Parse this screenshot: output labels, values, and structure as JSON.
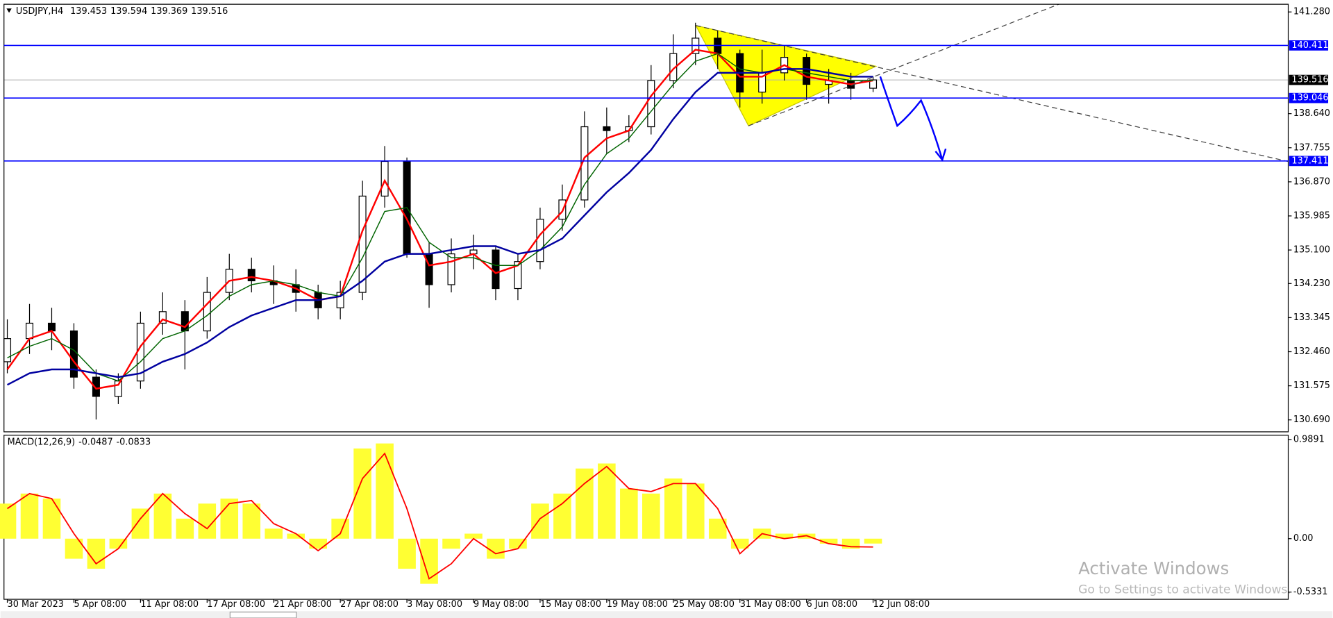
{
  "chart_data": [
    {
      "type": "candlestick",
      "title": "USDJPY,H4",
      "ohlc": [
        139.453,
        139.594,
        139.369,
        139.516
      ],
      "categories": [
        "30 Mar 2023",
        null,
        null,
        "5 Apr 08:00",
        null,
        null,
        "11 Apr 08:00",
        null,
        null,
        "17 Apr 08:00",
        null,
        null,
        "21 Apr 08:00",
        null,
        null,
        "27 Apr 08:00",
        null,
        null,
        "3 May 08:00",
        null,
        null,
        "9 May 08:00",
        null,
        null,
        "15 May 08:00",
        null,
        null,
        "19 May 08:00",
        null,
        null,
        "25 May 08:00",
        null,
        null,
        "31 May 08:00",
        null,
        null,
        "6 Jun 08:00",
        null,
        null,
        "12 Jun 08:00"
      ],
      "open": [
        132.2,
        132.8,
        133.2,
        133.0,
        131.8,
        131.3,
        131.7,
        133.2,
        133.5,
        133.0,
        134.0,
        134.6,
        134.3,
        134.2,
        134.0,
        133.6,
        134.0,
        136.5,
        137.4,
        135.0,
        134.2,
        135.0,
        135.1,
        134.1,
        134.8,
        135.9,
        136.4,
        138.3,
        138.2,
        138.3,
        139.5,
        140.2,
        140.6,
        140.2,
        139.2,
        139.7,
        140.1,
        139.4,
        139.5,
        139.3
      ],
      "high": [
        133.3,
        133.7,
        133.6,
        133.2,
        132.0,
        131.9,
        133.5,
        134.0,
        133.8,
        134.4,
        135.0,
        134.9,
        134.7,
        134.6,
        134.2,
        134.3,
        136.9,
        137.8,
        137.5,
        135.3,
        135.4,
        135.5,
        135.2,
        135.0,
        136.2,
        136.8,
        138.7,
        138.8,
        138.6,
        139.9,
        140.7,
        141.0,
        140.8,
        140.3,
        140.3,
        140.4,
        140.2,
        139.8,
        139.7,
        139.6
      ],
      "low": [
        131.9,
        132.4,
        132.5,
        131.5,
        130.7,
        131.1,
        131.5,
        132.9,
        132.0,
        132.8,
        133.8,
        134.0,
        133.7,
        133.5,
        133.3,
        133.3,
        133.8,
        136.2,
        134.9,
        133.6,
        134.0,
        134.6,
        133.8,
        133.8,
        134.6,
        135.6,
        136.2,
        137.6,
        137.9,
        138.1,
        139.3,
        139.9,
        139.8,
        138.8,
        138.9,
        139.5,
        139.0,
        138.9,
        139.0,
        139.2
      ],
      "close": [
        132.8,
        133.2,
        133.0,
        131.8,
        131.3,
        131.7,
        133.2,
        133.5,
        133.0,
        134.0,
        134.6,
        134.3,
        134.2,
        134.0,
        133.6,
        134.0,
        136.5,
        137.4,
        135.0,
        134.2,
        135.0,
        135.1,
        134.1,
        134.8,
        135.9,
        136.4,
        138.3,
        138.2,
        138.3,
        139.5,
        140.2,
        140.6,
        140.2,
        139.2,
        139.7,
        140.1,
        139.4,
        139.5,
        139.3,
        139.516
      ],
      "moving_averages": [
        {
          "color": "#ff0000",
          "values": [
            132.0,
            132.8,
            133.0,
            132.2,
            131.5,
            131.6,
            132.6,
            133.3,
            133.1,
            133.7,
            134.3,
            134.4,
            134.3,
            134.1,
            133.8,
            133.9,
            135.6,
            136.9,
            135.9,
            134.7,
            134.8,
            135.0,
            134.5,
            134.7,
            135.5,
            136.1,
            137.5,
            138.0,
            138.2,
            139.1,
            139.8,
            140.3,
            140.2,
            139.6,
            139.6,
            139.9,
            139.6,
            139.5,
            139.4,
            139.5
          ]
        },
        {
          "color": "#006400",
          "values": [
            132.3,
            132.6,
            132.8,
            132.5,
            131.9,
            131.7,
            132.2,
            132.8,
            133.0,
            133.4,
            133.9,
            134.2,
            134.3,
            134.2,
            134.0,
            133.9,
            134.9,
            136.1,
            136.2,
            135.3,
            134.9,
            134.9,
            134.7,
            134.7,
            135.1,
            135.7,
            136.8,
            137.6,
            138.0,
            138.7,
            139.4,
            140.0,
            140.2,
            139.8,
            139.7,
            139.8,
            139.7,
            139.6,
            139.5,
            139.5
          ]
        },
        {
          "color": "#0000a0",
          "values": [
            131.6,
            131.9,
            132.0,
            132.0,
            131.9,
            131.8,
            131.9,
            132.2,
            132.4,
            132.7,
            133.1,
            133.4,
            133.6,
            133.8,
            133.8,
            133.9,
            134.3,
            134.8,
            135.0,
            135.0,
            135.1,
            135.2,
            135.2,
            135.0,
            135.1,
            135.4,
            136.0,
            136.6,
            137.1,
            137.7,
            138.5,
            139.2,
            139.7,
            139.7,
            139.7,
            139.8,
            139.8,
            139.7,
            139.6,
            139.6
          ]
        }
      ],
      "levels": [
        140.411,
        139.046,
        137.411
      ],
      "level_color": "#0000ff",
      "xlim": [
        -0.15,
        57.7
      ],
      "ylim": [
        130.38,
        141.48
      ],
      "yticks": [
        {
          "value": 141.28,
          "label": "141.280"
        },
        {
          "value": 138.64,
          "label": "138.640"
        },
        137.755,
        {
          "value": 136.87,
          "label": "136.870"
        },
        135.985,
        {
          "value": 135.1,
          "label": "135.100"
        },
        {
          "value": 134.23,
          "label": "134.230"
        },
        133.345,
        {
          "value": 132.46,
          "label": "132.460"
        },
        131.575,
        {
          "value": 130.69,
          "label": "130.690"
        }
      ]
    },
    {
      "type": "macd",
      "title": "MACD(12,26,9)",
      "header_values": [
        -0.0487,
        -0.0833
      ],
      "color": "#ffff33",
      "signal_color": "#ff0000",
      "values": [
        0.35,
        0.45,
        0.4,
        -0.2,
        -0.3,
        -0.1,
        0.3,
        0.45,
        0.2,
        0.35,
        0.4,
        0.35,
        0.1,
        0.05,
        -0.1,
        0.2,
        0.9,
        0.95,
        -0.3,
        -0.45,
        -0.1,
        0.05,
        -0.2,
        -0.1,
        0.35,
        0.45,
        0.7,
        0.75,
        0.5,
        0.45,
        0.6,
        0.55,
        0.2,
        -0.1,
        0.1,
        0.05,
        0.05,
        -0.05,
        -0.1,
        -0.0487
      ],
      "signal": [
        0.3,
        0.45,
        0.4,
        0.05,
        -0.25,
        -0.1,
        0.2,
        0.45,
        0.25,
        0.1,
        0.35,
        0.38,
        0.15,
        0.05,
        -0.12,
        0.05,
        0.6,
        0.85,
        0.3,
        -0.4,
        -0.25,
        0,
        -0.15,
        -0.1,
        0.2,
        0.35,
        0.55,
        0.72,
        0.5,
        0.47,
        0.55,
        0.55,
        0.3,
        -0.15,
        0.05,
        0,
        0.03,
        -0.05,
        -0.08,
        -0.0833
      ],
      "ylim": [
        -0.605,
        1.032
      ],
      "yticks": [
        0.9891,
        {
          "value": 0,
          "label": "0.00"
        },
        -0.5331
      ]
    }
  ],
  "watermark": {
    "title": "Activate Windows",
    "subtitle": "Go to Settings to activate Windows."
  }
}
